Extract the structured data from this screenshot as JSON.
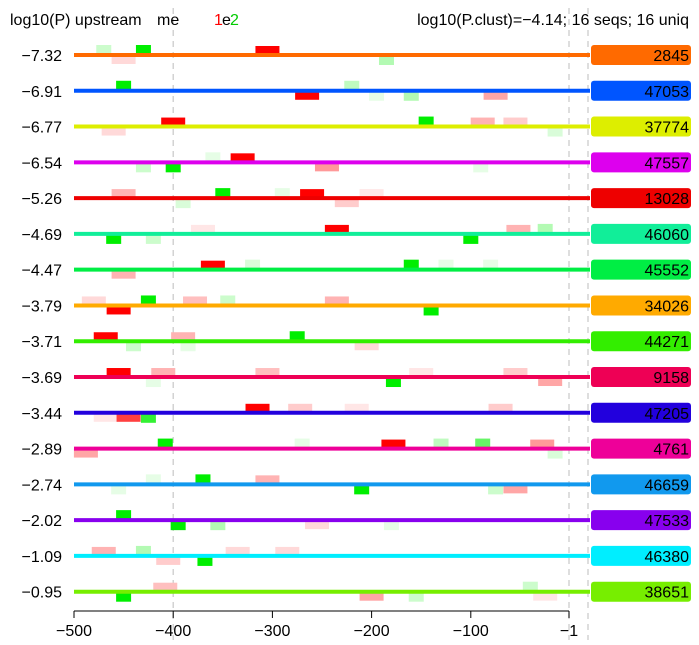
{
  "chart_data": {
    "type": "motif-site-map",
    "header": {
      "left": "log10(P) upstream",
      "motif_prefix": "me",
      "motif_suffix": "e",
      "motif_id_1": "1",
      "motif_id_2": "2",
      "motif_id_1_color": "#ff0000",
      "motif_id_2_color": "#00cc00",
      "right": "log10(P.clust)=−4.14; 16 seqs; 16 uniq"
    },
    "x_axis": {
      "range": [
        -500,
        0
      ],
      "ticks": [
        -500,
        -400,
        -300,
        -200,
        -100,
        -1
      ],
      "tick_labels": [
        "−500",
        "−400",
        "−300",
        "−200",
        "−100",
        "−1"
      ],
      "guide_lines": [
        -400,
        -1
      ]
    },
    "motif_colors": {
      "1": "#ff0000",
      "2": "#00ee00"
    },
    "sequences": [
      {
        "pval": "−7.32",
        "id": "2845",
        "color": "#ff6a00",
        "sites": [
          [
            1,
            -305,
            1,
            "top"
          ],
          [
            2,
            -430,
            1,
            "top"
          ],
          [
            2,
            -470,
            0.2,
            "top"
          ],
          [
            1,
            -450,
            0.15,
            "bot"
          ],
          [
            2,
            -185,
            0.3,
            "bot"
          ]
        ]
      },
      {
        "pval": "−6.91",
        "id": "47053",
        "color": "#0055ff",
        "sites": [
          [
            2,
            -450,
            1,
            "top"
          ],
          [
            1,
            -265,
            1,
            "bot"
          ],
          [
            2,
            -220,
            0.25,
            "top"
          ],
          [
            1,
            -75,
            0.35,
            "bot"
          ],
          [
            2,
            -160,
            0.3,
            "bot"
          ],
          [
            2,
            -195,
            0.1,
            "bot"
          ]
        ]
      },
      {
        "pval": "−6.77",
        "id": "37774",
        "color": "#ddee00",
        "sites": [
          [
            1,
            -400,
            1,
            "top"
          ],
          [
            2,
            -145,
            1,
            "top"
          ],
          [
            1,
            -88,
            0.3,
            "top"
          ],
          [
            1,
            -55,
            0.2,
            "top"
          ],
          [
            1,
            -460,
            0.15,
            "bot"
          ],
          [
            2,
            -15,
            0.15,
            "bot"
          ]
        ]
      },
      {
        "pval": "−6.54",
        "id": "47557",
        "color": "#dd00ee",
        "sites": [
          [
            1,
            -330,
            1,
            "top"
          ],
          [
            2,
            -400,
            1,
            "bot"
          ],
          [
            1,
            -245,
            0.4,
            "bot"
          ],
          [
            2,
            -430,
            0.2,
            "bot"
          ],
          [
            2,
            -360,
            0.1,
            "top"
          ],
          [
            2,
            -90,
            0.1,
            "bot"
          ]
        ]
      },
      {
        "pval": "−5.26",
        "id": "13028",
        "color": "#ee0000",
        "sites": [
          [
            1,
            -260,
            1,
            "top"
          ],
          [
            2,
            -350,
            1,
            "top"
          ],
          [
            1,
            -450,
            0.3,
            "top"
          ],
          [
            1,
            -225,
            0.2,
            "bot"
          ],
          [
            2,
            -290,
            0.1,
            "top"
          ],
          [
            2,
            -390,
            0.15,
            "bot"
          ],
          [
            1,
            -200,
            0.1,
            "top"
          ]
        ]
      },
      {
        "pval": "−4.69",
        "id": "46060",
        "color": "#11ee99",
        "sites": [
          [
            1,
            -235,
            1,
            "top"
          ],
          [
            2,
            -460,
            1,
            "bot"
          ],
          [
            2,
            -100,
            1,
            "bot"
          ],
          [
            1,
            -52,
            0.3,
            "top"
          ],
          [
            2,
            -25,
            0.3,
            "top"
          ],
          [
            2,
            -420,
            0.2,
            "bot"
          ],
          [
            1,
            -370,
            0.1,
            "top"
          ]
        ]
      },
      {
        "pval": "−4.47",
        "id": "45552",
        "color": "#00ee44",
        "sites": [
          [
            1,
            -360,
            1,
            "top"
          ],
          [
            2,
            -160,
            1,
            "top"
          ],
          [
            1,
            -450,
            0.3,
            "bot"
          ],
          [
            2,
            -320,
            0.15,
            "top"
          ],
          [
            2,
            -125,
            0.1,
            "top"
          ],
          [
            2,
            -80,
            0.1,
            "top"
          ]
        ]
      },
      {
        "pval": "−3.79",
        "id": "34026",
        "color": "#ffaa00",
        "sites": [
          [
            2,
            -425,
            1,
            "top"
          ],
          [
            1,
            -455,
            1,
            "bot"
          ],
          [
            2,
            -140,
            1,
            "bot"
          ],
          [
            1,
            -378,
            0.25,
            "top"
          ],
          [
            1,
            -235,
            0.3,
            "top"
          ],
          [
            2,
            -345,
            0.2,
            "top"
          ],
          [
            1,
            -480,
            0.15,
            "top"
          ]
        ]
      },
      {
        "pval": "−3.71",
        "id": "44271",
        "color": "#33ee00",
        "sites": [
          [
            1,
            -468,
            1,
            "top"
          ],
          [
            2,
            -275,
            1,
            "top"
          ],
          [
            1,
            -390,
            0.3,
            "top"
          ],
          [
            1,
            -205,
            0.15,
            "bot"
          ],
          [
            2,
            -440,
            0.2,
            "bot"
          ],
          [
            2,
            -385,
            0.1,
            "bot"
          ]
        ]
      },
      {
        "pval": "−3.69",
        "id": "9158",
        "color": "#ee0055",
        "sites": [
          [
            1,
            -455,
            1,
            "top"
          ],
          [
            2,
            -178,
            1,
            "bot"
          ],
          [
            1,
            -410,
            0.3,
            "top"
          ],
          [
            1,
            -305,
            0.25,
            "top"
          ],
          [
            1,
            -55,
            0.2,
            "top"
          ],
          [
            1,
            -20,
            0.35,
            "bot"
          ],
          [
            2,
            -420,
            0.1,
            "bot"
          ],
          [
            1,
            -150,
            0.1,
            "top"
          ]
        ]
      },
      {
        "pval": "−3.44",
        "id": "47205",
        "color": "#2200dd",
        "sites": [
          [
            1,
            -315,
            1,
            "top"
          ],
          [
            1,
            -445,
            0.75,
            "bot"
          ],
          [
            2,
            -425,
            0.8,
            "bot"
          ],
          [
            1,
            -272,
            0.2,
            "top"
          ],
          [
            1,
            -215,
            0.1,
            "top"
          ],
          [
            1,
            -70,
            0.2,
            "top"
          ],
          [
            1,
            -468,
            0.1,
            "bot"
          ]
        ]
      },
      {
        "pval": "−2.89",
        "id": "4761",
        "color": "#ee0099",
        "sites": [
          [
            1,
            -178,
            1,
            "top"
          ],
          [
            2,
            -408,
            1,
            "top"
          ],
          [
            2,
            -88,
            0.6,
            "top"
          ],
          [
            1,
            -28,
            0.4,
            "top"
          ],
          [
            1,
            -488,
            0.35,
            "bot"
          ],
          [
            2,
            -130,
            0.25,
            "top"
          ],
          [
            2,
            -270,
            0.1,
            "top"
          ],
          [
            2,
            -15,
            0.15,
            "bot"
          ]
        ]
      },
      {
        "pval": "−2.74",
        "id": "46659",
        "color": "#1199ee",
        "sites": [
          [
            2,
            -370,
            1,
            "top"
          ],
          [
            2,
            -210,
            1,
            "bot"
          ],
          [
            1,
            -55,
            0.35,
            "bot"
          ],
          [
            1,
            -305,
            0.3,
            "top"
          ],
          [
            2,
            -75,
            0.2,
            "bot"
          ],
          [
            2,
            -455,
            0.1,
            "bot"
          ],
          [
            2,
            -420,
            0.1,
            "top"
          ]
        ]
      },
      {
        "pval": "−2.02",
        "id": "47533",
        "color": "#8800ee",
        "sites": [
          [
            2,
            -450,
            1,
            "top"
          ],
          [
            2,
            -395,
            1,
            "bot"
          ],
          [
            2,
            -355,
            0.3,
            "bot"
          ],
          [
            1,
            -255,
            0.15,
            "bot"
          ],
          [
            2,
            -180,
            0.1,
            "bot"
          ]
        ]
      },
      {
        "pval": "−1.09",
        "id": "46380",
        "color": "#00eeff",
        "sites": [
          [
            2,
            -368,
            1,
            "bot"
          ],
          [
            1,
            -470,
            0.3,
            "top"
          ],
          [
            2,
            -430,
            0.3,
            "top"
          ],
          [
            1,
            -405,
            0.2,
            "bot"
          ],
          [
            1,
            -335,
            0.15,
            "top"
          ],
          [
            1,
            -285,
            0.15,
            "top"
          ]
        ]
      },
      {
        "pval": "−0.95",
        "id": "38651",
        "color": "#77ee00",
        "sites": [
          [
            2,
            -450,
            1,
            "bot"
          ],
          [
            1,
            -200,
            0.35,
            "bot"
          ],
          [
            1,
            -408,
            0.25,
            "top"
          ],
          [
            2,
            -155,
            0.2,
            "bot"
          ],
          [
            2,
            -40,
            0.2,
            "top"
          ],
          [
            1,
            -25,
            0.1,
            "bot"
          ]
        ]
      }
    ]
  }
}
